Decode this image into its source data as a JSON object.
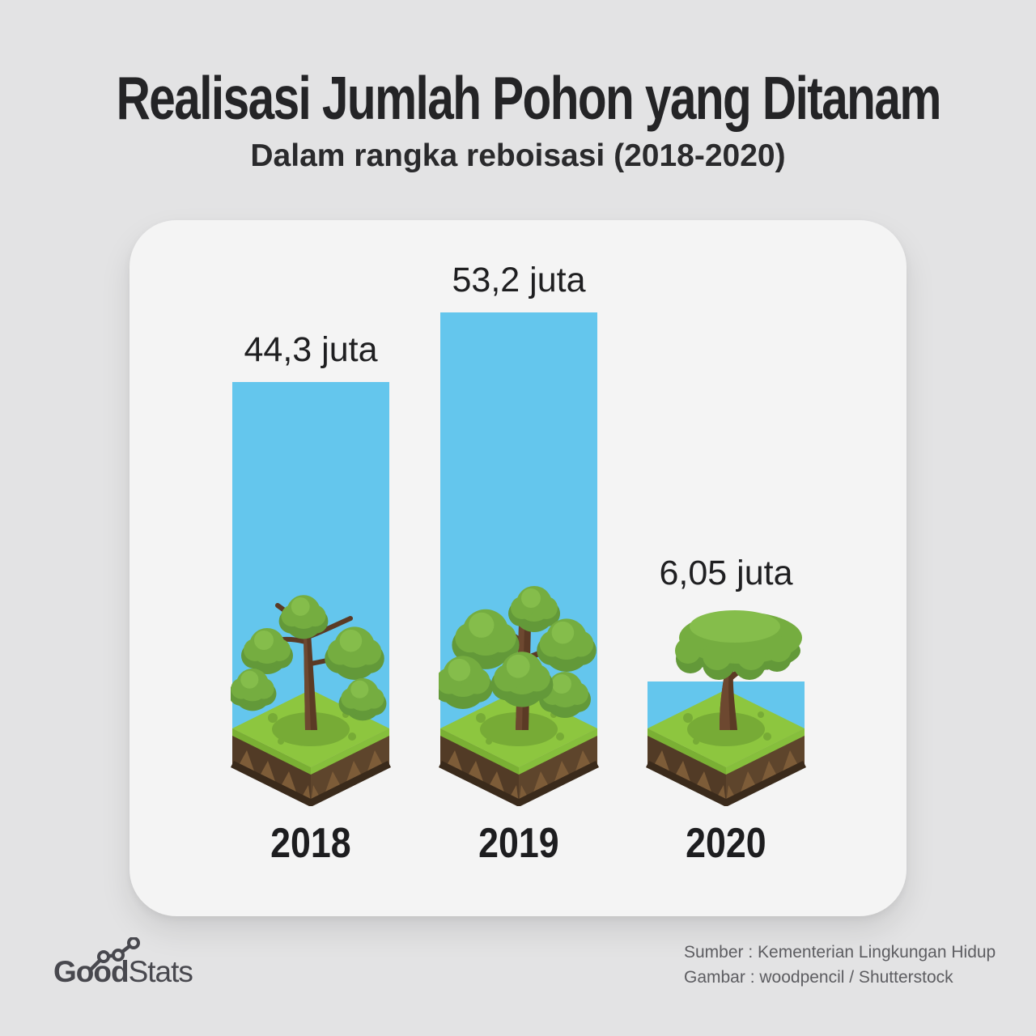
{
  "title": "Realisasi Jumlah Pohon yang Ditanam",
  "subtitle": "Dalam rangka reboisasi (2018-2020)",
  "chart_data": {
    "type": "bar",
    "categories": [
      "2018",
      "2019",
      "2020"
    ],
    "values": [
      44.3,
      53.2,
      6.05
    ],
    "value_labels": [
      "44,3 juta",
      "53,2 juta",
      "6,05 juta"
    ],
    "unit": "juta pohon",
    "title": "Realisasi Jumlah Pohon yang Ditanam",
    "subtitle": "Dalam rangka reboisasi (2018-2020)",
    "bar_color": "#64c6ed",
    "ylim": [
      0,
      60
    ],
    "grid": false,
    "legend": false,
    "annotations": "setiap batang berdiri di atas blok tanah isometrik dengan pohon"
  },
  "footer": {
    "logo_good": "Good",
    "logo_stats": "Stats",
    "source_line1": "Sumber : Kementerian Lingkungan Hidup",
    "source_line2": "Gambar : woodpencil / Shutterstock"
  },
  "colors": {
    "background": "#e3e3e4",
    "card": "#f4f4f4",
    "bar": "#64c6ed",
    "grass": "#8dc63f",
    "soil": "#5e452c",
    "text": "#242426",
    "muted_text": "#5d5d61"
  }
}
